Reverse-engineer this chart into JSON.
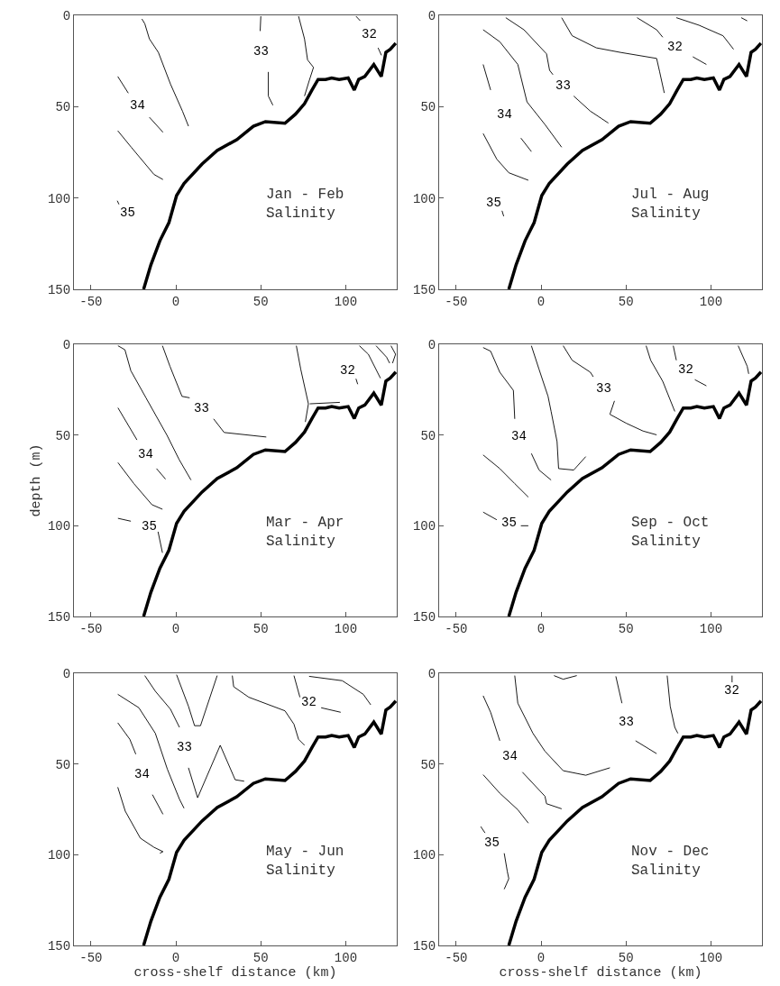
{
  "chart_data": [
    {
      "type": "line",
      "title": "Jan - Feb\nSalinity",
      "xlim": [
        -60,
        130
      ],
      "xticks": [
        -50,
        0,
        50,
        100
      ],
      "ylim": [
        150,
        0
      ],
      "yticks": [
        0,
        50,
        100,
        150
      ],
      "grid": false,
      "legend": false,
      "series": [
        {
          "color": "#000000",
          "x": [
            -19,
            -14.7,
            -9.4,
            -4.1,
            0.4,
            4.8,
            15.4,
            24.3,
            35.8,
            45.6,
            52.7,
            64.2,
            70.4,
            75.7,
            80.1,
            83.7,
            88.1,
            91.7,
            96.1,
            101.4,
            105,
            107.6,
            111.2,
            116.5,
            120.9,
            123.6,
            126.2,
            129.4
          ],
          "values": [
            150,
            136.6,
            123.4,
            113.5,
            98.7,
            92.1,
            81.4,
            74,
            68.1,
            60.7,
            58.2,
            59.1,
            54.1,
            48.4,
            40.9,
            35.1,
            35.1,
            34.3,
            35.1,
            34.3,
            40.9,
            35.1,
            33.5,
            26.9,
            33.5,
            20.3,
            18.6,
            15.3
          ]
        },
        {
          "name": "34",
          "color": "#000000",
          "x": [
            -34.2,
            -28.0,
            -22.7,
            -15.6,
            -7.6
          ],
          "values": [
            33.5,
            42.6,
            null,
            55.8,
            64.0
          ]
        },
        {
          "color": "#000000",
          "x": [
            -20,
            -18.3,
            -15.6,
            -10.3,
            -3.2,
            3.9,
            7.4
          ],
          "values": [
            2,
            4.6,
            12.9,
            20.3,
            37.6,
            52.5,
            60.7
          ]
        },
        {
          "color": "#000000",
          "x": [
            -34.2,
            -26.2,
            -12.9,
            -7.6
          ],
          "values": [
            63.2,
            72.3,
            87.1,
            89.9
          ]
        },
        {
          "name": "33",
          "color": "#000000",
          "x": [
            50,
            49.6,
            50,
            54.4,
            54.4,
            57.1
          ],
          "values": [
            0.5,
            8.6,
            null,
            31.0,
            44.2,
            49.2
          ]
        },
        {
          "color": "#000000",
          "x": [
            72.2,
            75.7,
            77.5,
            81.0,
            78.4,
            75.7
          ],
          "values": [
            0.5,
            12.9,
            24.4,
            28.5,
            36.0,
            44.2
          ]
        },
        {
          "name": "32",
          "color": "#000000",
          "x": [
            106,
            108.5,
            113.8,
            119,
            121
          ],
          "values": [
            0.5,
            3,
            null,
            17.8,
            21.9
          ]
        },
        {
          "name": "35",
          "color": "#000000",
          "x": [
            -33.5,
            -34.5
          ],
          "values": [
            103.5,
            101.5
          ]
        }
      ]
    },
    {
      "type": "line",
      "title": "Jul - Aug\nSalinity",
      "xlim": [
        -60,
        130
      ],
      "xticks": [
        -50,
        0,
        50,
        100
      ],
      "ylim": [
        150,
        0
      ],
      "yticks": [
        0,
        50,
        100,
        150
      ],
      "grid": false,
      "legend": false,
      "series": [
        {
          "color": "#000000",
          "x": [
            -19,
            -14.7,
            -9.4,
            -4.1,
            0.4,
            4.8,
            15.4,
            24.3,
            35.8,
            45.6,
            52.7,
            64.2,
            70.4,
            75.7,
            80.1,
            83.7,
            88.1,
            91.7,
            96.1,
            101.4,
            105,
            107.6,
            111.2,
            116.5,
            120.9,
            123.6,
            126.2,
            129.4
          ],
          "values": [
            150,
            136.6,
            123.4,
            113.5,
            98.7,
            92.1,
            81.4,
            74,
            68.1,
            60.7,
            58.2,
            59.1,
            54.1,
            48.4,
            40.9,
            35.1,
            35.1,
            34.3,
            35.1,
            34.3,
            40.9,
            35.1,
            33.5,
            26.9,
            33.5,
            20.3,
            18.6,
            15.3
          ]
        },
        {
          "color": "#000000",
          "x": [
            -34.1,
            -26.1,
            -19.0,
            -7.5
          ],
          "values": [
            64.7,
            78.7,
            86.2,
            90.3
          ]
        },
        {
          "name": "34",
          "color": "#000000",
          "x": [
            -34.1,
            -29.7,
            -21.7,
            -11.9,
            -5.7
          ],
          "values": [
            26.9,
            40.9,
            null,
            67.2,
            74.6
          ]
        },
        {
          "color": "#000000",
          "x": [
            -34.1,
            -24.3,
            -13.7,
            -8.3,
            2.3,
            12.1
          ],
          "values": [
            7.9,
            14.5,
            26.9,
            47.4,
            59.8,
            72.2
          ]
        },
        {
          "name": "33",
          "color": "#000000",
          "x": [
            -20.8,
            -10.1,
            3.2,
            5.0,
            7,
            13,
            19.2,
            28.9,
            39.6
          ],
          "values": [
            1.3,
            7.9,
            21.1,
            30.1,
            32.5,
            null,
            44.2,
            52.4,
            59.0
          ]
        },
        {
          "color": "#000000",
          "x": [
            12.1,
            18.3,
            32.5,
            46.7,
            68.0,
            69.8,
            72.5
          ],
          "values": [
            1.3,
            11.2,
            17.8,
            20.3,
            23.6,
            31.0,
            42.5
          ]
        },
        {
          "name": "32",
          "color": "#000000",
          "x": [
            56.5,
            68.0,
            71.6,
            78.7,
            89.3,
            97.3
          ],
          "values": [
            1.3,
            7.9,
            12.0,
            null,
            22.7,
            26.9
          ]
        },
        {
          "color": "#000000",
          "x": [
            79.6,
            92.9,
            107.1,
            113.3
          ],
          "values": [
            1.3,
            5.4,
            11.2,
            18.6
          ]
        },
        {
          "color": "#000000",
          "x": [
            117.8,
            121.3
          ],
          "values": [
            1.3,
            3.0
          ]
        },
        {
          "name": "35",
          "color": "#000000",
          "x": [
            -23,
            -22
          ],
          "values": [
            107,
            110
          ]
        }
      ]
    },
    {
      "type": "line",
      "title": "Mar - Apr\nSalinity",
      "ylabel": "depth (m)",
      "xlim": [
        -60,
        130
      ],
      "xticks": [
        -50,
        0,
        50,
        100
      ],
      "ylim": [
        150,
        0
      ],
      "yticks": [
        0,
        50,
        100,
        150
      ],
      "grid": false,
      "legend": false,
      "series": [
        {
          "color": "#000000",
          "x": [
            -19,
            -14.7,
            -9.4,
            -4.1,
            0.4,
            4.8,
            15.4,
            24.3,
            35.8,
            45.6,
            52.7,
            64.2,
            70.4,
            75.7,
            80.1,
            83.7,
            88.1,
            91.7,
            96.1,
            101.4,
            105,
            107.6,
            111.2,
            116.5,
            120.9,
            123.6,
            126.2,
            129.4
          ],
          "values": [
            150,
            136.6,
            123.4,
            113.5,
            98.7,
            92.1,
            81.4,
            74,
            68.1,
            60.7,
            58.2,
            59.1,
            54.1,
            48.4,
            40.9,
            35.1,
            35.1,
            34.3,
            35.1,
            34.3,
            40.9,
            35.1,
            33.5,
            26.9,
            33.5,
            20.3,
            18.6,
            15.3
          ]
        },
        {
          "name": "35",
          "color": "#000000",
          "x": [
            -34.1,
            -26.5,
            -15.8,
            -10.5,
            -7.9
          ],
          "values": [
            95.9,
            97.5,
            null,
            103.3,
            114.9
          ]
        },
        {
          "color": "#000000",
          "x": [
            -34.1,
            -24.7,
            -14.1,
            -7.9
          ],
          "values": [
            65.2,
            76.8,
            88.4,
            90.9
          ]
        },
        {
          "name": "34",
          "color": "#000000",
          "x": [
            -34.1,
            -22.9,
            -17.6,
            -11.4,
            -6.1
          ],
          "values": [
            35.0,
            52.7,
            null,
            68.5,
            74.3
          ]
        },
        {
          "color": "#000000",
          "x": [
            -34.1,
            -30.0,
            -26.5,
            -17.6,
            -5.2,
            1.9,
            8.9
          ],
          "values": [
            0.8,
            3.0,
            14.6,
            29.5,
            50.2,
            63.5,
            74.8
          ]
        },
        {
          "name": "33",
          "color": "#000000",
          "x": [
            -7.9,
            -3.5,
            3.6,
            8.1,
            15.1,
            22.2,
            28.4,
            53.2
          ],
          "values": [
            0.8,
            12.1,
            28.7,
            29.5,
            null,
            41.1,
            48.6,
            51.1
          ]
        },
        {
          "color": "#000000",
          "x": [
            70.9,
            73.5,
            78.0,
            76.2
          ],
          "values": [
            0.8,
            13.8,
            32.8,
            42.8
          ]
        },
        {
          "color": "#000000",
          "x": [
            78.8,
            96.5
          ],
          "values": [
            32.8,
            32.0
          ]
        },
        {
          "color": "#000000",
          "x": [
            108,
            113.3,
            120.4
          ],
          "values": [
            0.8,
            5.5,
            18.7
          ]
        },
        {
          "color": "#000000",
          "x": [
            117.8,
            124,
            125.8
          ],
          "values": [
            0.8,
            7.1,
            10.4
          ]
        },
        {
          "color": "#000000",
          "x": [
            126.6,
            129.3,
            127.5
          ],
          "values": [
            0.8,
            5.5,
            10.4
          ]
        },
        {
          "name": "32",
          "color": "#000000",
          "x": [
            106,
            107
          ],
          "values": [
            19,
            22
          ]
        }
      ]
    },
    {
      "type": "line",
      "title": "Sep - Oct\nSalinity",
      "xlim": [
        -60,
        130
      ],
      "xticks": [
        -50,
        0,
        50,
        100
      ],
      "ylim": [
        150,
        0
      ],
      "yticks": [
        0,
        50,
        100,
        150
      ],
      "grid": false,
      "legend": false,
      "series": [
        {
          "color": "#000000",
          "x": [
            -19,
            -14.7,
            -9.4,
            -4.1,
            0.4,
            4.8,
            15.4,
            24.3,
            35.8,
            45.6,
            52.7,
            64.2,
            70.4,
            75.7,
            80.1,
            83.7,
            88.1,
            91.7,
            96.1,
            101.4,
            105,
            107.6,
            111.2,
            116.5,
            120.9,
            123.6,
            126.2,
            129.4
          ],
          "values": [
            150,
            136.6,
            123.4,
            113.5,
            98.7,
            92.1,
            81.4,
            74,
            68.1,
            60.7,
            58.2,
            59.1,
            54.1,
            48.4,
            40.9,
            35.1,
            35.1,
            34.3,
            35.1,
            34.3,
            40.9,
            35.1,
            33.5,
            26.9,
            33.5,
            20.3,
            18.6,
            15.3
          ]
        },
        {
          "name": "35",
          "color": "#000000",
          "x": [
            -34.1,
            -26.1,
            -19,
            -11.9,
            -7.5
          ],
          "values": [
            92.5,
            96.7,
            null,
            100,
            100
          ]
        },
        {
          "color": "#000000",
          "x": [
            -34.1,
            -24.3,
            -15.5,
            -7.5
          ],
          "values": [
            61,
            68.5,
            76.8,
            84.2
          ]
        },
        {
          "name": "34",
          "color": "#000000",
          "x": [
            -34.1,
            -29.7,
            -24.3,
            -16.3,
            -15.5,
            -12.8,
            -5.7,
            -1.2,
            5.9
          ],
          "values": [
            1.8,
            3.8,
            15.4,
            25.4,
            41.1,
            null,
            60.2,
            69.3,
            74.8
          ]
        },
        {
          "color": "#000000",
          "x": [
            -5.7,
            -1.2,
            4.1,
            5.9,
            9.4,
            10.3,
            19.2,
            26.3
          ],
          "values": [
            0.8,
            13.8,
            28.7,
            37.0,
            53.6,
            68.5,
            69.3,
            61.9
          ]
        },
        {
          "name": "33",
          "color": "#000000",
          "x": [
            13,
            18.3,
            29,
            30.7,
            36.9,
            43.2,
            40.5,
            50.3,
            60,
            68
          ],
          "values": [
            0.8,
            8.8,
            15.4,
            17.9,
            null,
            31.2,
            38.6,
            43.6,
            47.8,
            49.9
          ]
        },
        {
          "color": "#000000",
          "x": [
            61.8,
            64.5,
            71.6,
            78.7
          ],
          "values": [
            0.8,
            8.8,
            20.4,
            37.0
          ]
        },
        {
          "name": "32",
          "color": "#000000",
          "x": [
            77.8,
            79.6,
            84.9,
            90.5,
            97.3
          ],
          "values": [
            0.8,
            8.8,
            null,
            19.5,
            22.9
          ]
        },
        {
          "color": "#000000",
          "x": [
            116,
            121.3,
            122.2
          ],
          "values": [
            0.8,
            12.1,
            16.3
          ]
        }
      ]
    },
    {
      "type": "line",
      "title": "May - Jun\nSalinity",
      "xlabel": "cross-shelf distance (km)",
      "xlim": [
        -60,
        130
      ],
      "xticks": [
        -50,
        0,
        50,
        100
      ],
      "ylim": [
        150,
        0
      ],
      "yticks": [
        0,
        50,
        100,
        150
      ],
      "grid": false,
      "legend": false,
      "series": [
        {
          "color": "#000000",
          "x": [
            -19,
            -14.7,
            -9.4,
            -4.1,
            0.4,
            4.8,
            15.4,
            24.3,
            35.8,
            45.6,
            52.7,
            64.2,
            70.4,
            75.7,
            80.1,
            83.7,
            88.1,
            91.7,
            96.1,
            101.4,
            105,
            107.6,
            111.2,
            116.5,
            120.9,
            123.6,
            126.2,
            129.4
          ],
          "values": [
            150,
            136.6,
            123.4,
            113.5,
            98.7,
            92.1,
            81.4,
            74,
            68.1,
            60.7,
            58.2,
            59.1,
            54.1,
            48.4,
            40.9,
            35.1,
            35.1,
            34.3,
            35.1,
            34.3,
            40.9,
            35.1,
            33.5,
            26.9,
            33.5,
            20.3,
            18.6,
            15.3
          ]
        },
        {
          "color": "#000000",
          "x": [
            -34.2,
            -29.8,
            -20.9,
            -12.9,
            -7.6,
            -9.4
          ],
          "values": [
            62.8,
            76,
            90.9,
            95.9,
            98.3,
            99.2
          ]
        },
        {
          "name": "34",
          "color": "#000000",
          "x": [
            -34.2,
            -27.1,
            -23.6,
            -20,
            -13.8,
            -7.6
          ],
          "values": [
            27.3,
            36.4,
            44.6,
            null,
            66.9,
            77.7
          ]
        },
        {
          "color": "#000000",
          "x": [
            -34.2,
            -21.8,
            -12.1,
            -5,
            2.1,
            4.8
          ],
          "values": [
            11.6,
            19,
            33.1,
            52.9,
            69.4,
            74.4
          ]
        },
        {
          "name": "33",
          "color": "#000000",
          "x": [
            -18.3,
            -12.1,
            -3.2,
            2.1,
            4.8,
            7.4,
            12.8,
            26.1,
            34.9,
            40.2
          ],
          "values": [
            1.3,
            9.9,
            19.8,
            29.8,
            null,
            52.1,
            68.6,
            39.7,
            58.7,
            59.5
          ]
        },
        {
          "color": "#000000",
          "x": [
            0.4,
            7.4,
            11,
            14.5,
            24.3
          ],
          "values": [
            0.8,
            18.2,
            28.9,
            28.9,
            1.3
          ]
        },
        {
          "color": "#000000",
          "x": [
            33.2,
            34,
            42.9,
            64.2,
            69.5,
            72.2,
            75.7
          ],
          "values": [
            1.3,
            7.4,
            13.2,
            20.7,
            28.1,
            36.4,
            39.7
          ]
        },
        {
          "name": "32",
          "color": "#000000",
          "x": [
            69.5,
            73,
            78.4,
            85.5,
            97
          ],
          "values": [
            1.3,
            13.2,
            null,
            19,
            21.5
          ]
        },
        {
          "color": "#000000",
          "x": [
            78.4,
            97.9,
            110.3,
            114.7
          ],
          "values": [
            1.7,
            4.1,
            11.6,
            17.4
          ]
        }
      ]
    },
    {
      "type": "line",
      "title": "Nov - Dec\nSalinity",
      "xlabel": "cross-shelf distance (km)",
      "xlim": [
        -60,
        130
      ],
      "xticks": [
        -50,
        0,
        50,
        100
      ],
      "ylim": [
        150,
        0
      ],
      "yticks": [
        0,
        50,
        100,
        150
      ],
      "grid": false,
      "legend": false,
      "series": [
        {
          "color": "#000000",
          "x": [
            -19,
            -14.7,
            -9.4,
            -4.1,
            0.4,
            4.8,
            15.4,
            24.3,
            35.8,
            45.6,
            52.7,
            64.2,
            70.4,
            75.7,
            80.1,
            83.7,
            88.1,
            91.7,
            96.1,
            101.4,
            105,
            107.6,
            111.2,
            116.5,
            120.9,
            123.6,
            126.2,
            129.4
          ],
          "values": [
            150,
            136.6,
            123.4,
            113.5,
            98.7,
            92.1,
            81.4,
            74,
            68.1,
            60.7,
            58.2,
            59.1,
            54.1,
            48.4,
            40.9,
            35.1,
            35.1,
            34.3,
            35.1,
            34.3,
            40.9,
            35.1,
            33.5,
            26.9,
            33.5,
            20.3,
            18.6,
            15.3
          ]
        },
        {
          "name": "35",
          "color": "#000000",
          "x": [
            -35.5,
            -33,
            -28.8,
            -21.7,
            -19.9,
            -19,
            -21.7
          ],
          "values": [
            84.5,
            88,
            null,
            99.2,
            109.1,
            113.2,
            119
          ]
        },
        {
          "color": "#000000",
          "x": [
            -34.1,
            -24.3,
            -13.7,
            -7.5
          ],
          "values": [
            55.9,
            66.1,
            75.2,
            82.6
          ]
        },
        {
          "name": "34",
          "color": "#000000",
          "x": [
            -34.1,
            -29.7,
            -24.3,
            -18.1,
            -11,
            2.3,
            3.2,
            12.1
          ],
          "values": [
            12.4,
            21.5,
            37.2,
            null,
            54.5,
            67.8,
            71.9,
            74.7
          ]
        },
        {
          "color": "#000000",
          "x": [
            -15.5,
            -13.7,
            -4.8,
            2.3,
            13,
            26.3,
            40.5
          ],
          "values": [
            1.3,
            16.5,
            33.1,
            43,
            53.7,
            56.2,
            52.1
          ]
        },
        {
          "color": "#000000",
          "x": [
            7.6,
            13,
            21
          ],
          "values": [
            1.3,
            3.3,
            1.3
          ]
        },
        {
          "name": "33",
          "color": "#000000",
          "x": [
            44,
            47.6,
            50.3,
            55.6,
            68
          ],
          "values": [
            1.7,
            16.5,
            null,
            37.2,
            44.3
          ]
        },
        {
          "color": "#000000",
          "x": [
            74.2,
            76,
            78.7,
            80.5
          ],
          "values": [
            1.3,
            18.2,
            29.8,
            33.1
          ]
        },
        {
          "name": "32",
          "color": "#000000",
          "x": [
            112.4,
            112.4
          ],
          "values": [
            5.0,
            1.3
          ]
        }
      ]
    }
  ]
}
